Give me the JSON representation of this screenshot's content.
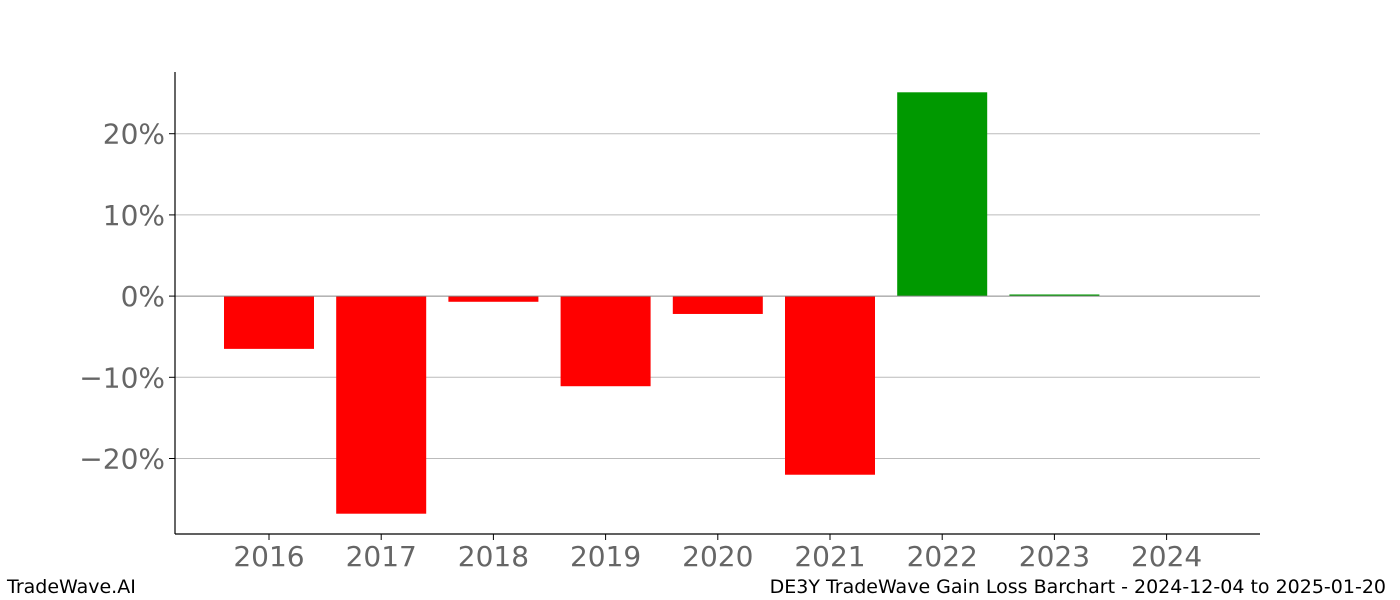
{
  "chart_data": {
    "type": "bar",
    "categories": [
      "2016",
      "2017",
      "2018",
      "2019",
      "2020",
      "2021",
      "2022",
      "2023",
      "2024"
    ],
    "values": [
      -6.5,
      -26.8,
      -0.7,
      -11.1,
      -2.2,
      -22.0,
      25.1,
      0.2,
      0.0
    ],
    "ylim": [
      -29.3,
      27.6
    ],
    "yticks": [
      -20,
      -10,
      0,
      10,
      20
    ],
    "ytick_labels": [
      "−20%",
      "−10%",
      "0%",
      "10%",
      "20%"
    ],
    "grid": true,
    "colors": {
      "gain": "#009900",
      "loss": "#ff0000",
      "grid": "#bbbbbb",
      "tick_label": "#666666"
    }
  },
  "footer": {
    "left": "TradeWave.AI",
    "right": "DE3Y TradeWave Gain Loss Barchart - 2024-12-04 to 2025-01-20"
  }
}
